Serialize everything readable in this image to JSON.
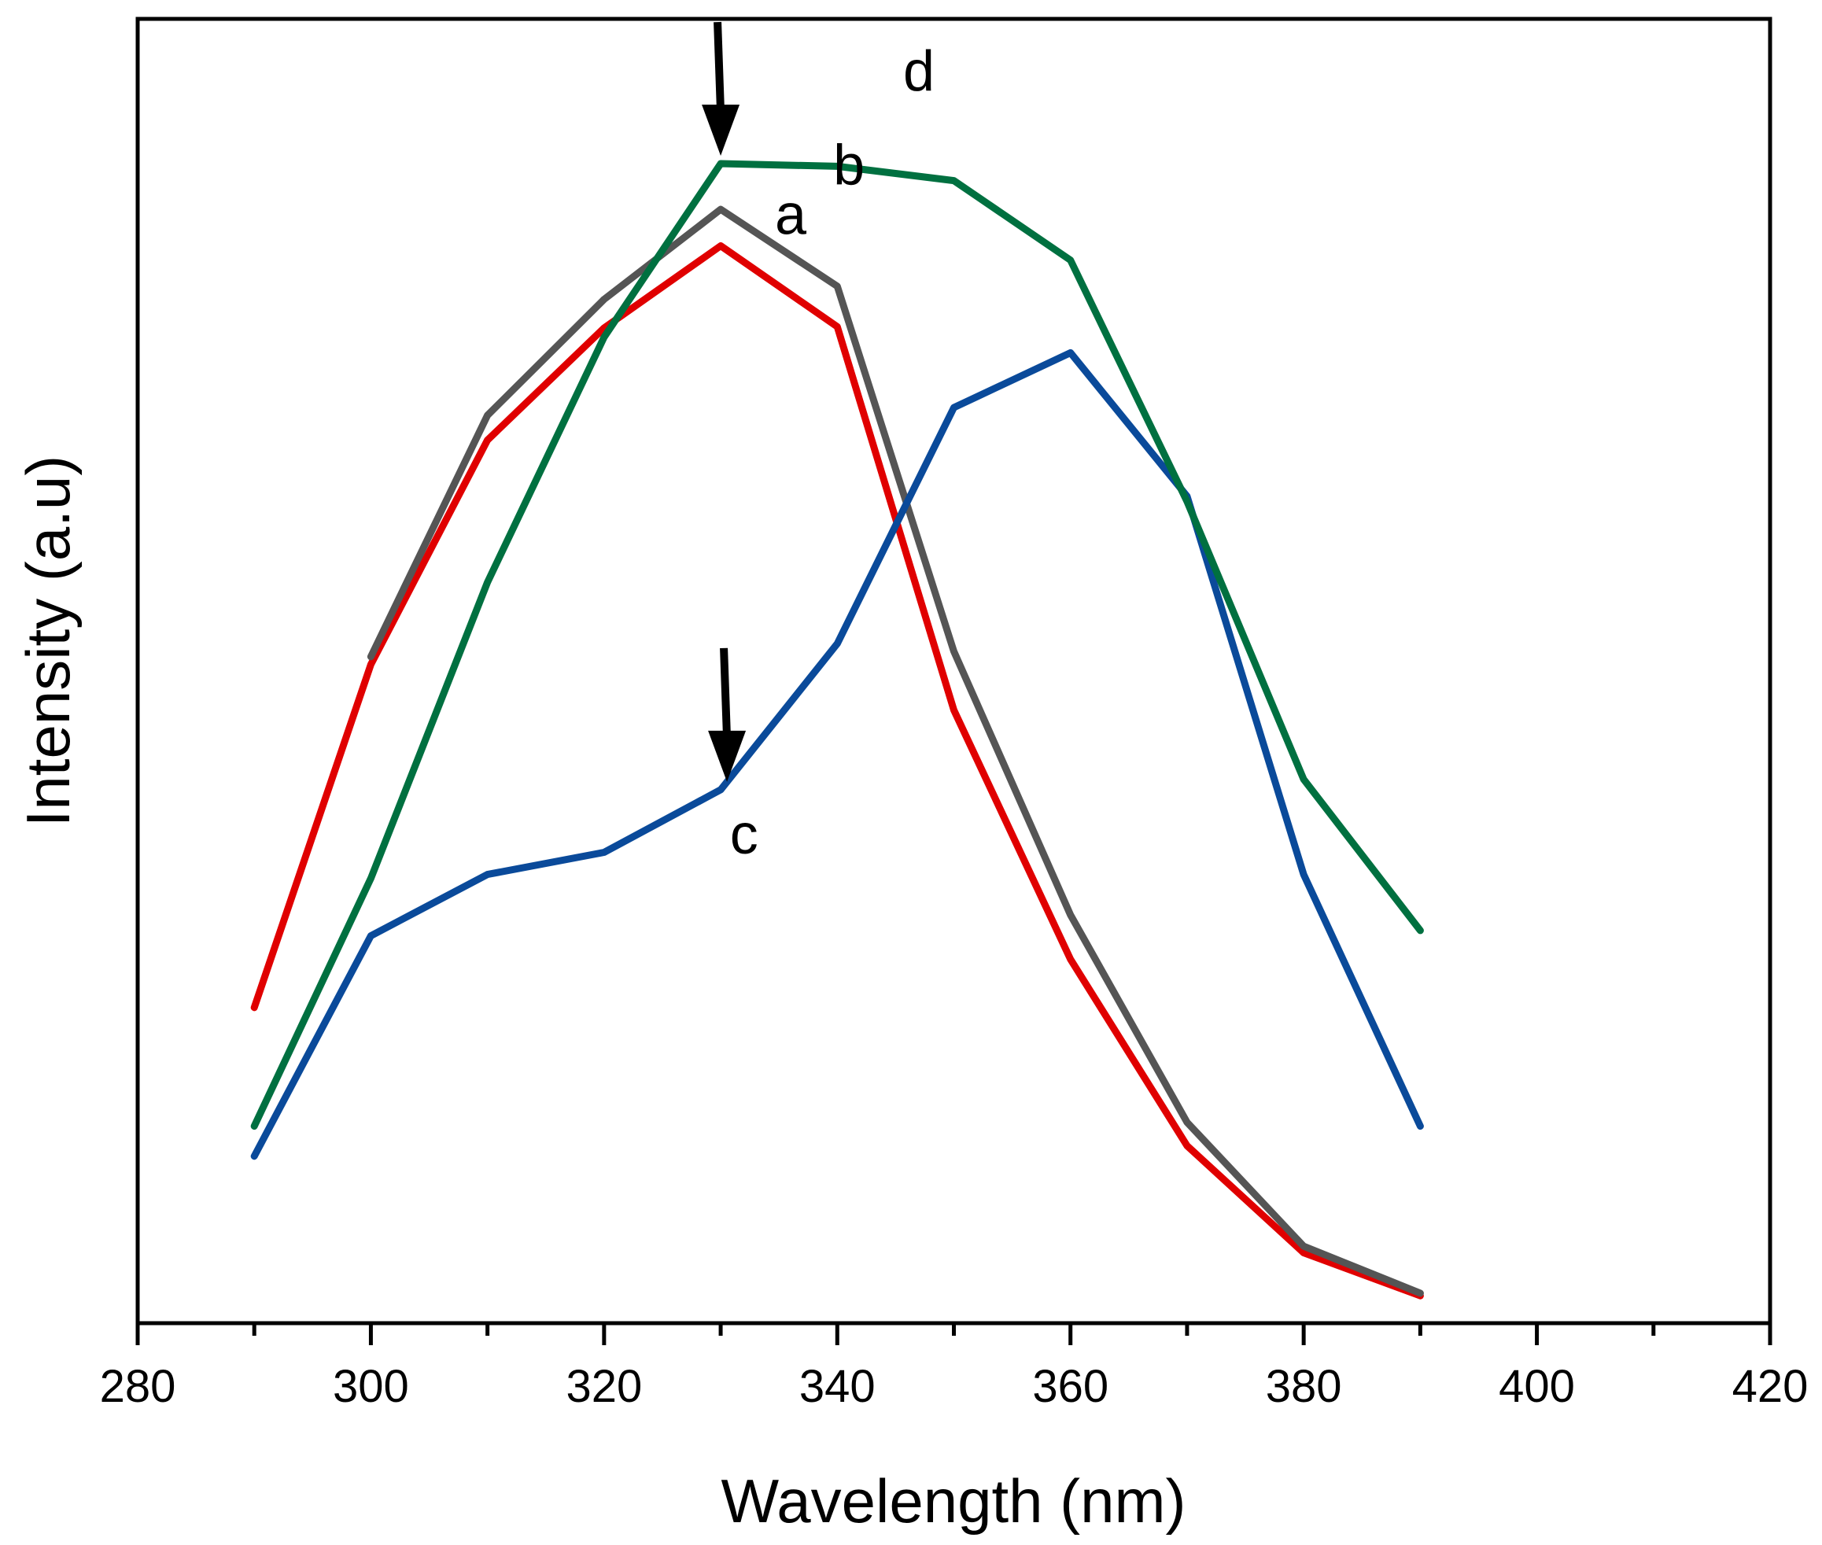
{
  "chart_data": {
    "type": "line",
    "xlabel": "Wavelength (nm)",
    "ylabel": "Intensity (a.u)",
    "xlim": [
      280,
      420
    ],
    "ylim": [
      0,
      100
    ],
    "x_ticks": [
      280,
      300,
      320,
      340,
      360,
      380,
      400,
      420
    ],
    "x_tick_labels": [
      "280",
      "300",
      "320",
      "340",
      "360",
      "380",
      "400",
      "420"
    ],
    "y_ticks_shown": false,
    "grid": false,
    "x": [
      290,
      300,
      310,
      320,
      330,
      340,
      350,
      360,
      370,
      380,
      390
    ],
    "series": [
      {
        "label": "a",
        "color": "#e00000",
        "values": [
          24.2,
          50.5,
          67.7,
          76.3,
          82.6,
          76.4,
          47.0,
          27.9,
          13.6,
          5.4,
          2.1
        ]
      },
      {
        "label": "b",
        "color": "#555555",
        "values": [
          null,
          51.1,
          69.6,
          78.5,
          85.4,
          79.5,
          51.5,
          31.3,
          15.4,
          5.9,
          2.3
        ]
      },
      {
        "label": "c",
        "color": "#0a4a9a",
        "values": [
          12.8,
          29.7,
          34.4,
          36.1,
          40.9,
          52.1,
          70.2,
          74.4,
          63.4,
          34.4,
          15.1
        ]
      },
      {
        "label": "d",
        "color": "#007040",
        "values": [
          15.1,
          34.1,
          56.8,
          75.6,
          88.9,
          88.7,
          87.6,
          81.5,
          63.0,
          41.7,
          30.1
        ]
      }
    ],
    "annotations": [
      {
        "type": "arrow",
        "target_series": "d",
        "x": 330
      },
      {
        "type": "arrow",
        "target_series": "c",
        "x": 330
      }
    ]
  }
}
